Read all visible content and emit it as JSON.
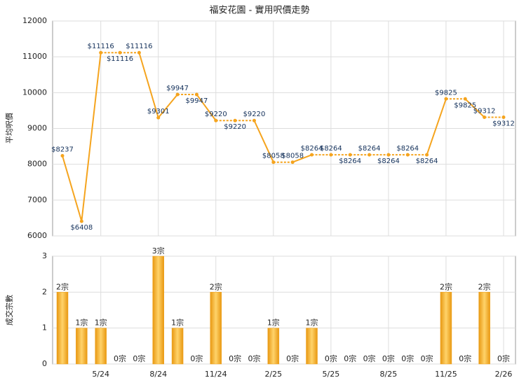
{
  "chart_data": [
    {
      "type": "line",
      "title": "福安花園 - 實用呎價走勢",
      "y_label": "平均呎價",
      "color": "#f5a41e",
      "values": [
        8237,
        6408,
        11116,
        11116,
        11116,
        9301,
        9947,
        9947,
        9220,
        9220,
        9220,
        8058,
        8058,
        8264,
        8264,
        8264,
        8264,
        8264,
        8264,
        8264,
        9825,
        9825,
        9312,
        9312
      ],
      "value_labels": [
        "$8237",
        "$6408",
        "$11116",
        "$11116",
        "$11116",
        "$9301",
        "$9947",
        "$9947",
        "$9220",
        "$9220",
        "$9220",
        "$8058",
        "$8058",
        "$8264",
        "$8264",
        "$8264",
        "$8264",
        "$8264",
        "$8264",
        "$8264",
        "$9825",
        "$9825",
        "$9312",
        "$9312"
      ],
      "ylim": [
        6000,
        12000
      ],
      "yticks": [
        6000,
        7000,
        8000,
        9000,
        10000,
        11000,
        12000
      ],
      "grid": true
    },
    {
      "type": "bar",
      "y_label": "成交宗數",
      "color": "#f0a21c",
      "categories": [
        null,
        null,
        "5/24",
        null,
        null,
        "8/24",
        null,
        null,
        "11/24",
        null,
        null,
        "2/25",
        null,
        null,
        "5/25",
        null,
        null,
        "8/25",
        null,
        null,
        "11/25",
        null,
        null,
        "2/26"
      ],
      "values": [
        2,
        1,
        1,
        0,
        0,
        3,
        1,
        0,
        2,
        0,
        0,
        1,
        0,
        1,
        0,
        0,
        0,
        0,
        0,
        0,
        2,
        0,
        2,
        0
      ],
      "value_labels": [
        "2宗",
        "1宗",
        "1宗",
        "0宗",
        "0宗",
        "3宗",
        "1宗",
        "0宗",
        "2宗",
        "0宗",
        "0宗",
        "1宗",
        "0宗",
        "1宗",
        "0宗",
        "0宗",
        "0宗",
        "0宗",
        "0宗",
        "0宗",
        "2宗",
        "0宗",
        "2宗",
        "0宗"
      ],
      "ylim": [
        0,
        3
      ],
      "yticks": [
        0,
        1,
        2,
        3
      ],
      "grid": true
    }
  ]
}
